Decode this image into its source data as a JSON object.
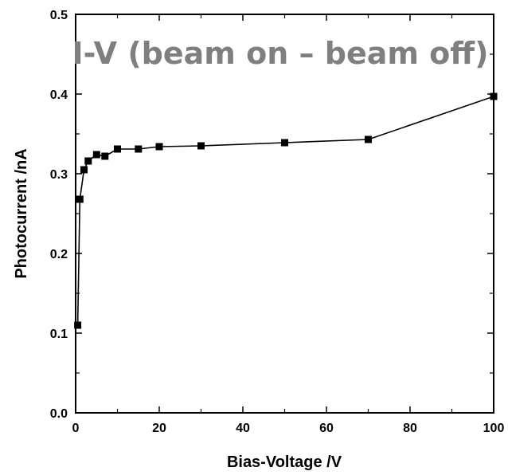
{
  "chart_data": {
    "type": "line",
    "title": "I-V (beam on – beam off)",
    "xlabel": "Bias-Voltage /V",
    "ylabel": "Photocurrent /nA",
    "xlim": [
      0,
      100
    ],
    "ylim": [
      0.0,
      0.5
    ],
    "xticks": [
      0,
      20,
      40,
      60,
      80,
      100
    ],
    "xtick_labels": [
      "0",
      "20",
      "40",
      "60",
      "80",
      "100"
    ],
    "yticks": [
      0.0,
      0.1,
      0.2,
      0.3,
      0.4,
      0.5
    ],
    "ytick_labels": [
      "0.0",
      "0.1",
      "0.2",
      "0.3",
      "0.4",
      "0.5"
    ],
    "grid": false,
    "marker": "square",
    "series": [
      {
        "x": [
          0.5,
          1,
          2,
          3,
          5,
          7,
          10,
          15,
          20,
          30,
          50,
          70,
          100
        ],
        "y": [
          0.11,
          0.268,
          0.305,
          0.316,
          0.324,
          0.322,
          0.331,
          0.331,
          0.334,
          0.335,
          0.339,
          0.343,
          0.397
        ]
      }
    ],
    "colors": {
      "series": "#000000",
      "title": "#7f7f7f",
      "axes": "#000000"
    }
  }
}
